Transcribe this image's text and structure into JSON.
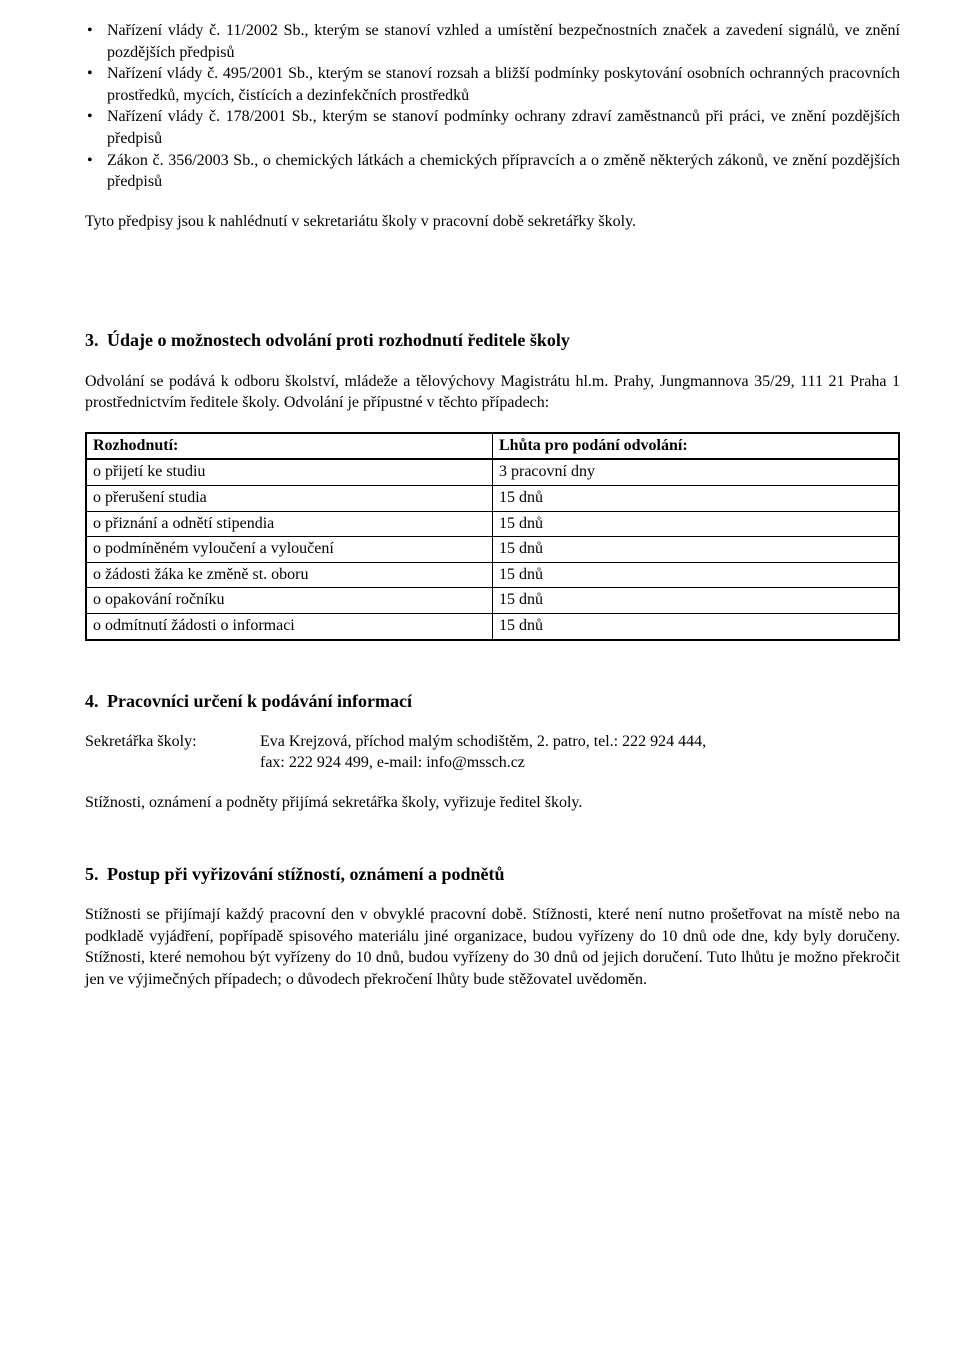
{
  "bulletList": {
    "items": [
      "Nařízení vlády č. 11/2002 Sb., kterým se stanoví vzhled a umístění bezpečnostních značek a zavedení signálů, ve znění pozdějších předpisů",
      "Nařízení vlády č. 495/2001 Sb., kterým se stanoví rozsah a bližší podmínky poskytování osobních ochranných pracovních prostředků, mycích, čistících a dezinfekčních prostředků",
      "Nařízení vlády č. 178/2001 Sb., kterým se stanoví podmínky ochrany zdraví zaměstnanců při práci, ve znění pozdějších předpisů",
      "Zákon č. 356/2003 Sb., o chemických látkách a chemických přípravcích a o změně některých zákonů, ve znění pozdějších předpisů"
    ]
  },
  "paragraphAfterList": "Tyto předpisy jsou k nahlédnutí v sekretariátu školy v pracovní době sekretářky školy.",
  "section3": {
    "num": "3.",
    "title": "Údaje o možnostech odvolání proti rozhodnutí ředitele školy",
    "intro": "Odvolání se podává k odboru školství, mládeže a tělovýchovy Magistrátu hl.m. Prahy, Jungmannova 35/29, 111 21  Praha 1 prostřednictvím ředitele školy. Odvolání je přípustné v těchto případech:",
    "table": {
      "headers": [
        "Rozhodnutí:",
        "Lhůta pro podání odvolání:"
      ],
      "rows": [
        [
          "o přijetí ke studiu",
          "3 pracovní dny"
        ],
        [
          "o přerušení studia",
          "15 dnů"
        ],
        [
          "o přiznání a odnětí stipendia",
          "15 dnů"
        ],
        [
          "o podmíněném vyloučení a vyloučení",
          "15 dnů"
        ],
        [
          "o žádosti žáka ke změně st. oboru",
          "15 dnů"
        ],
        [
          "o opakování ročníku",
          "15 dnů"
        ],
        [
          "o odmítnutí žádosti o informaci",
          "15 dnů"
        ]
      ]
    }
  },
  "section4": {
    "num": "4.",
    "title": "Pracovníci určení k podávání informací",
    "contact": {
      "label": "Sekretářka školy:",
      "line1": "Eva Krejzová, příchod malým schodištěm, 2. patro, tel.: 222 924 444,",
      "line2": "fax: 222 924 499, e-mail: info@mssch.cz"
    },
    "after": "Stížnosti, oznámení a podněty přijímá sekretářka školy, vyřizuje ředitel školy."
  },
  "section5": {
    "num": "5.",
    "title": "Postup při vyřizování stížností, oznámení a podnětů",
    "para": "Stížnosti se přijímají každý pracovní den v obvyklé pracovní době. Stížnosti, které není nutno prošetřovat na místě nebo na podkladě vyjádření, popřípadě spisového materiálu jiné organizace, budou vyřízeny do 10 dnů ode dne, kdy byly doručeny. Stížnosti, které nemohou být vyřízeny do 10 dnů, budou vyřízeny do 30 dnů od jejich doručení. Tuto lhůtu je možno překročit jen ve výjimečných případech; o důvodech překročení lhůty bude stěžovatel uvědoměn."
  }
}
